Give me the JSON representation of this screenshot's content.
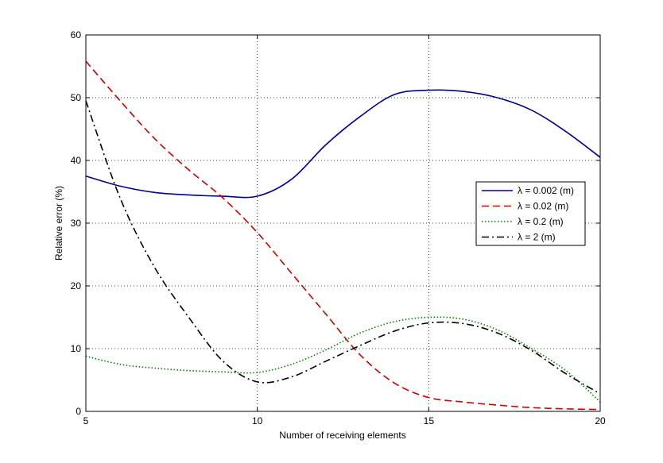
{
  "chart_data": {
    "type": "line",
    "title": "",
    "xlabel": "Number of receiving elements",
    "ylabel": "Relative error (%)",
    "xlim": [
      5,
      20
    ],
    "ylim": [
      0,
      60
    ],
    "xticks": [
      5,
      10,
      15,
      20
    ],
    "yticks": [
      0,
      10,
      20,
      30,
      40,
      50,
      60
    ],
    "grid": true,
    "legend_position": "right",
    "series": [
      {
        "name": "λ = 0.002 (m)",
        "color": "#00008B",
        "style": "solid",
        "x": [
          5,
          6,
          7,
          8,
          9,
          10,
          11,
          12,
          13,
          14,
          15,
          16,
          17,
          18,
          19,
          20
        ],
        "y": [
          37.5,
          35.9,
          34.9,
          34.5,
          34.3,
          34.3,
          37.0,
          42.5,
          47.0,
          50.5,
          51.2,
          51.0,
          50.0,
          48.0,
          44.6,
          40.5
        ]
      },
      {
        "name": "λ = 0.02 (m)",
        "color": "#CC0000",
        "style": "dashed",
        "x": [
          5,
          6,
          7,
          8,
          9,
          10,
          11,
          12,
          13,
          14,
          15,
          16,
          17,
          18,
          19,
          20
        ],
        "y": [
          55.8,
          49.5,
          43.5,
          38.5,
          34.0,
          28.5,
          22.0,
          15.5,
          9.0,
          4.5,
          2.2,
          1.5,
          1.0,
          0.6,
          0.4,
          0.3
        ]
      },
      {
        "name": "λ = 0.2 (m)",
        "color": "#008000",
        "style": "dotted",
        "x": [
          5,
          6,
          7,
          8,
          9,
          10,
          11,
          12,
          13,
          14,
          15,
          16,
          17,
          18,
          19,
          20
        ],
        "y": [
          8.8,
          7.5,
          6.9,
          6.5,
          6.3,
          6.2,
          7.5,
          9.8,
          12.5,
          14.3,
          15.0,
          14.7,
          13.0,
          10.0,
          6.5,
          1.5
        ]
      },
      {
        "name": "λ = 2 (m)",
        "color": "#000000",
        "style": "dashdot",
        "x": [
          5,
          6,
          7,
          8,
          9,
          10,
          11,
          12,
          13,
          14,
          15,
          16,
          17,
          18,
          19,
          20
        ],
        "y": [
          49.5,
          34.0,
          23.0,
          15.0,
          8.0,
          4.7,
          5.5,
          8.0,
          10.5,
          12.8,
          14.1,
          14.0,
          12.5,
          9.7,
          6.0,
          2.8
        ]
      }
    ]
  }
}
